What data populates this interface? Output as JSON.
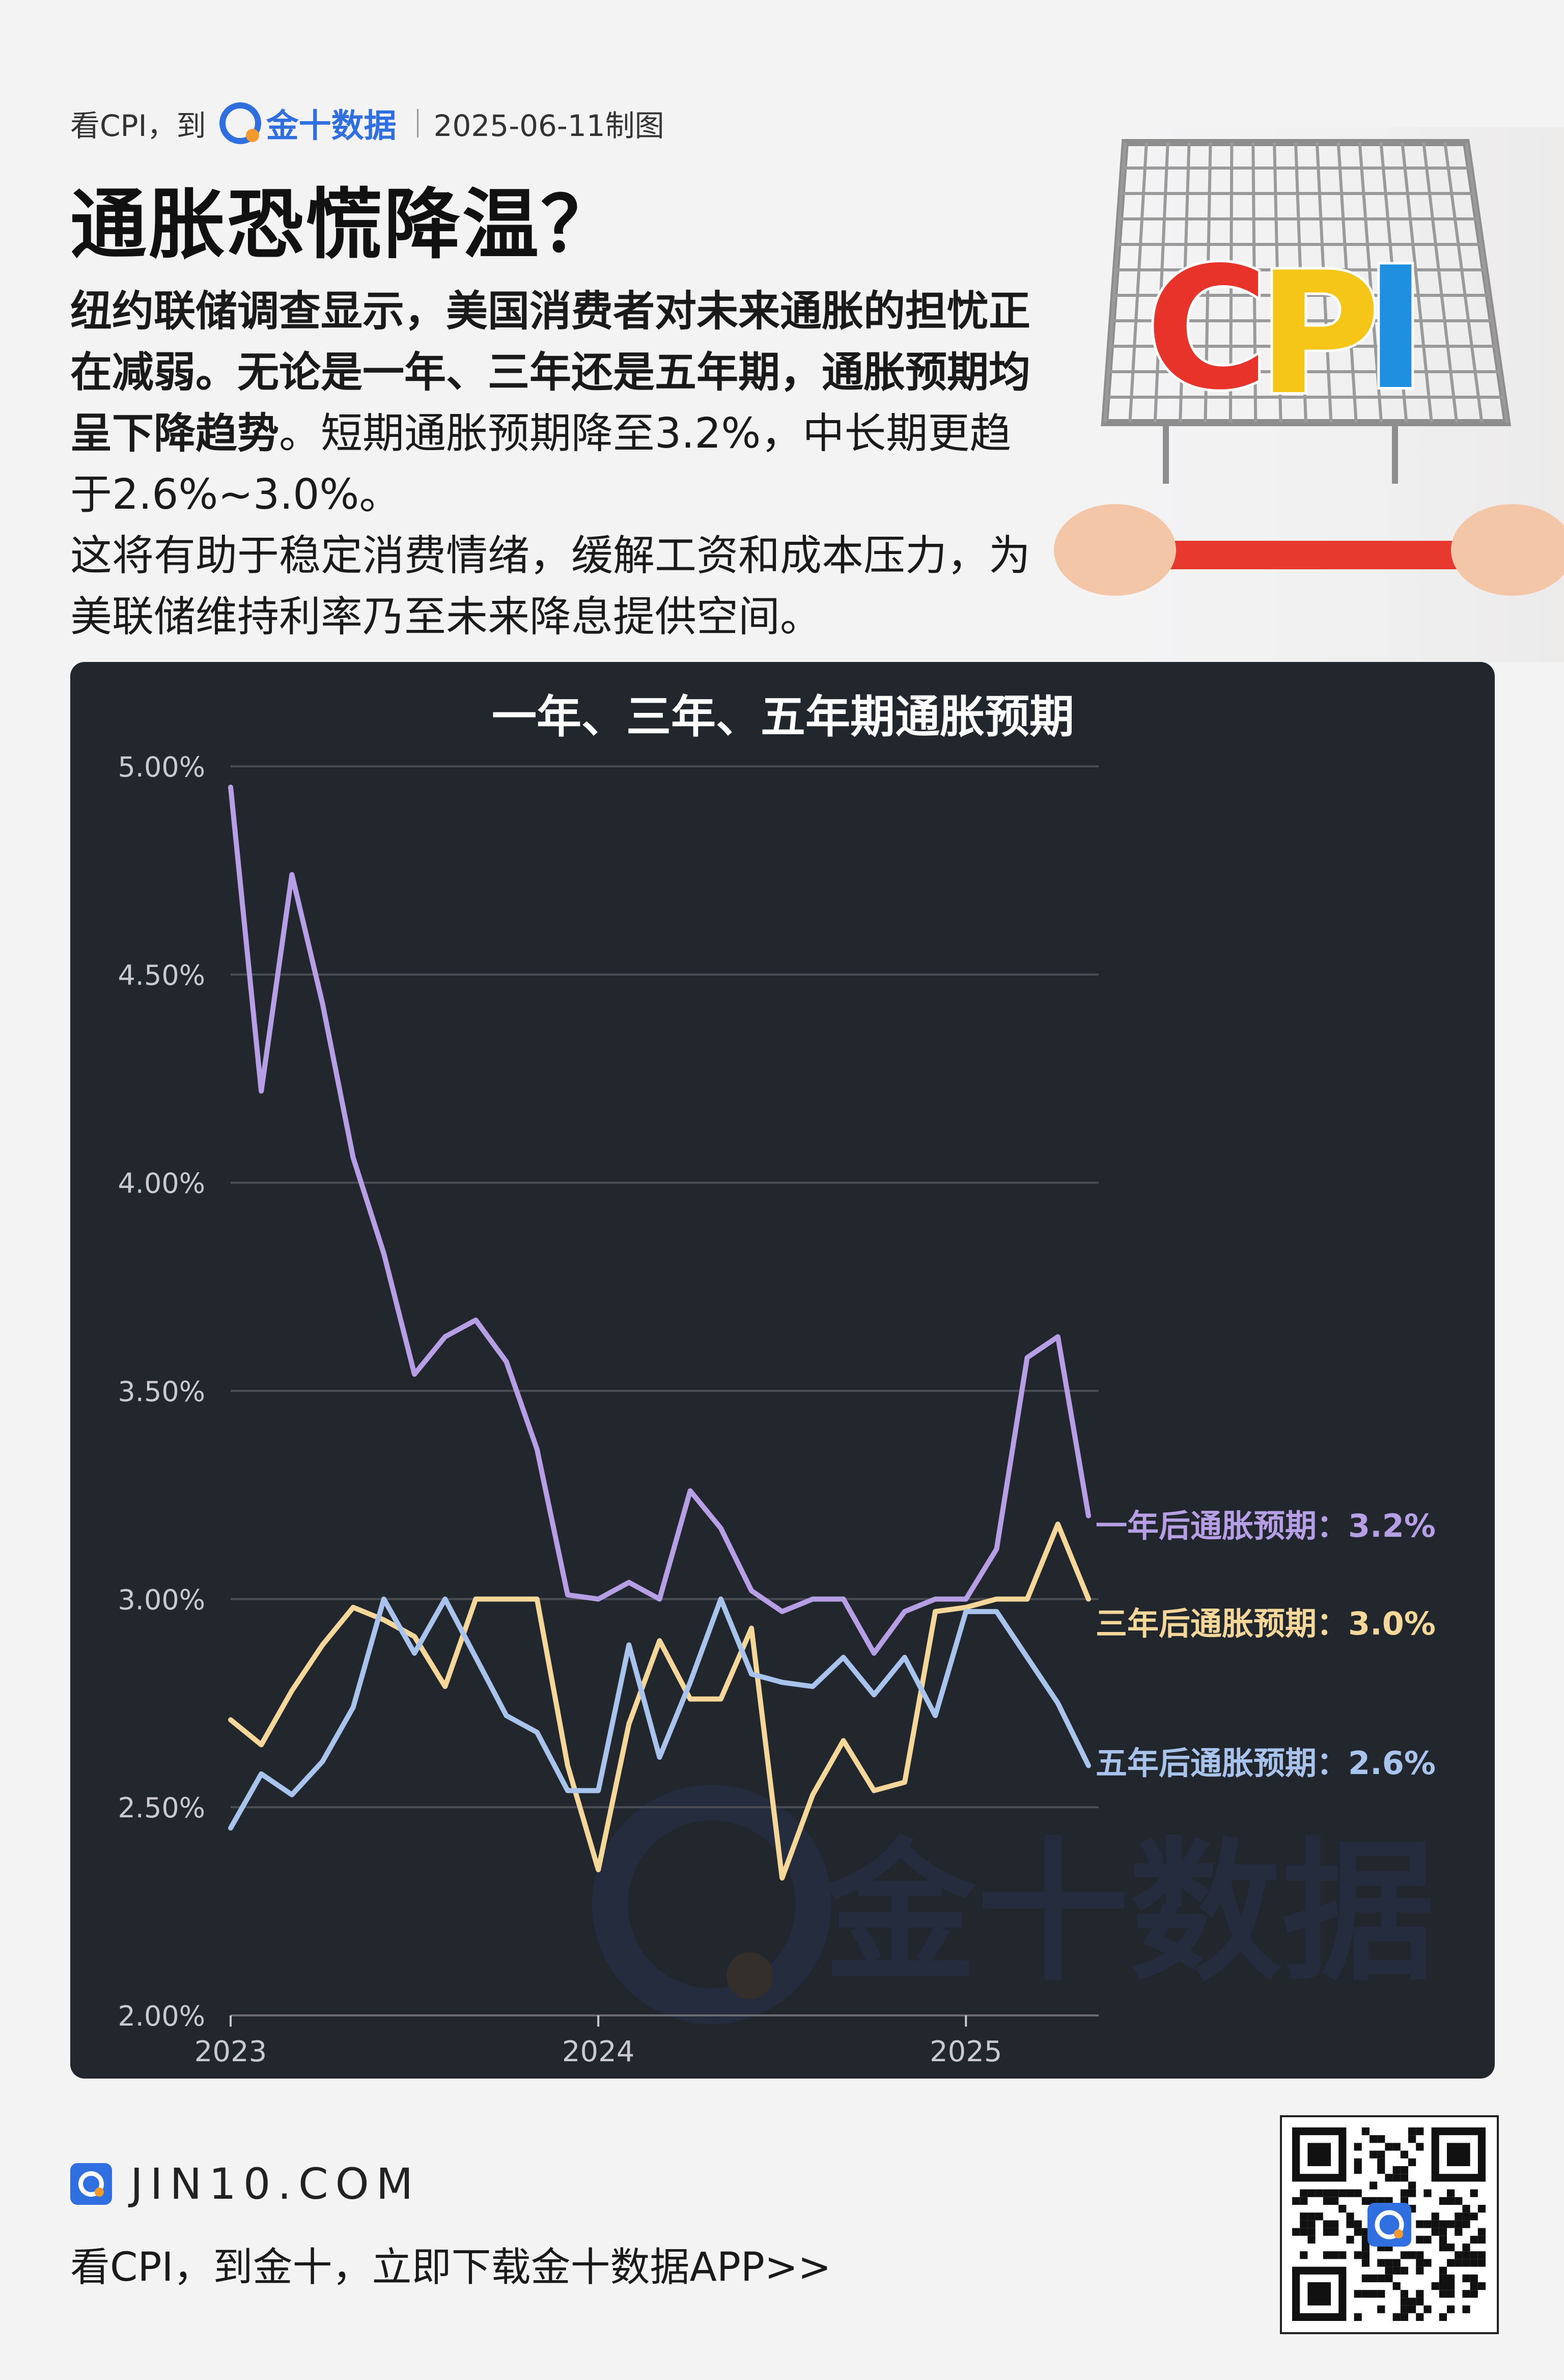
{
  "header": {
    "prefix": "看CPI，到",
    "brand": "金十数据",
    "date": "2025-06-11制图"
  },
  "title": "通胀恐慌降温？",
  "description": {
    "bold_text": "纽约联储调查显示，美国消费者对未来通胀的担忧正在减弱。无论是一年、三年还是五年期，通胀预期均呈下降趋势",
    "normal_text": "。短期通胀预期降至3.2%，中长期更趋于2.6%~3.0%。",
    "second_paragraph": "这将有助于稳定消费情绪，缓解工资和成本压力，为美联储维持利率乃至未来降息提供空间。"
  },
  "illustration": {
    "cart_label": "CPI",
    "letter_colors": [
      "#e8332a",
      "#f5c518",
      "#1f8fe0"
    ]
  },
  "watermark": "金十数据",
  "chart_data": {
    "type": "line",
    "title": "一年、三年、五年期通胀预期",
    "ylim": [
      2.0,
      5.0
    ],
    "yticks": [
      2.0,
      2.5,
      3.0,
      3.5,
      4.0,
      4.5,
      5.0
    ],
    "ytick_labels": [
      "2.00%",
      "2.50%",
      "3.00%",
      "3.50%",
      "4.00%",
      "4.50%",
      "5.00%"
    ],
    "x_start": "2023-01",
    "x_end": "2025-05",
    "xticks": [
      "2023-01",
      "2024-01",
      "2025-01"
    ],
    "xtick_labels": [
      "2023",
      "2024",
      "2025"
    ],
    "grid": true,
    "x": [
      "2023-01",
      "2023-02",
      "2023-03",
      "2023-04",
      "2023-05",
      "2023-06",
      "2023-07",
      "2023-08",
      "2023-09",
      "2023-10",
      "2023-11",
      "2023-12",
      "2024-01",
      "2024-02",
      "2024-03",
      "2024-04",
      "2024-05",
      "2024-06",
      "2024-07",
      "2024-08",
      "2024-09",
      "2024-10",
      "2024-11",
      "2024-12",
      "2025-01",
      "2025-02",
      "2025-03",
      "2025-04",
      "2025-05"
    ],
    "series": [
      {
        "label": "一年后通胀预期：3.2%",
        "color": "#b79fe6",
        "values": [
          4.95,
          4.22,
          4.74,
          4.43,
          4.06,
          3.83,
          3.54,
          3.63,
          3.67,
          3.57,
          3.36,
          3.01,
          3.0,
          3.04,
          3.0,
          3.26,
          3.17,
          3.02,
          2.97,
          3.0,
          3.0,
          2.87,
          2.97,
          3.0,
          3.0,
          3.12,
          3.58,
          3.63,
          3.2
        ]
      },
      {
        "label": "三年后通胀预期：3.0%",
        "color": "#f5d79a",
        "values": [
          2.71,
          2.65,
          2.78,
          2.89,
          2.98,
          2.95,
          2.91,
          2.79,
          3.0,
          3.0,
          3.0,
          2.6,
          2.35,
          2.7,
          2.9,
          2.76,
          2.76,
          2.93,
          2.33,
          2.53,
          2.66,
          2.54,
          2.56,
          2.97,
          2.98,
          3.0,
          3.0,
          3.18,
          3.0
        ]
      },
      {
        "label": "五年后通胀预期：2.6%",
        "color": "#a9c4ec",
        "values": [
          2.45,
          2.58,
          2.53,
          2.61,
          2.74,
          3.0,
          2.87,
          3.0,
          2.86,
          2.72,
          2.68,
          2.54,
          2.54,
          2.89,
          2.62,
          2.8,
          3.0,
          2.82,
          2.8,
          2.79,
          2.86,
          2.77,
          2.86,
          2.72,
          2.97,
          2.97,
          2.86,
          2.75,
          2.6
        ]
      }
    ]
  },
  "footer": {
    "site": "JIN10.COM",
    "cta": "看CPI，到金十，立即下载金十数据APP>>"
  }
}
